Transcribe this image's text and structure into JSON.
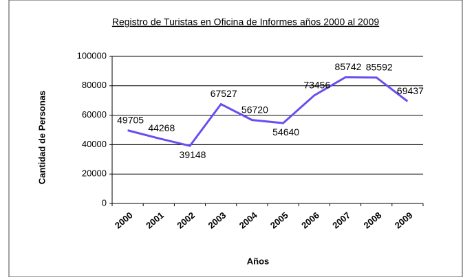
{
  "chart_data": {
    "type": "line",
    "title": "Registro de Turistas en Oficina de Informes años 2000 al 2009",
    "x_label": "Años",
    "y_label": "Cantidad de Personas",
    "categories": [
      "2000",
      "2001",
      "2002",
      "2003",
      "2004",
      "2005",
      "2006",
      "2007",
      "2008",
      "2009"
    ],
    "values": [
      49705,
      44268,
      39148,
      67527,
      56720,
      54640,
      73456,
      85742,
      85592,
      69437
    ],
    "color": "#6b4cf0",
    "ylim": [
      0,
      100000
    ],
    "yticks": [
      0,
      20000,
      40000,
      60000,
      80000,
      100000
    ],
    "grid": true
  }
}
